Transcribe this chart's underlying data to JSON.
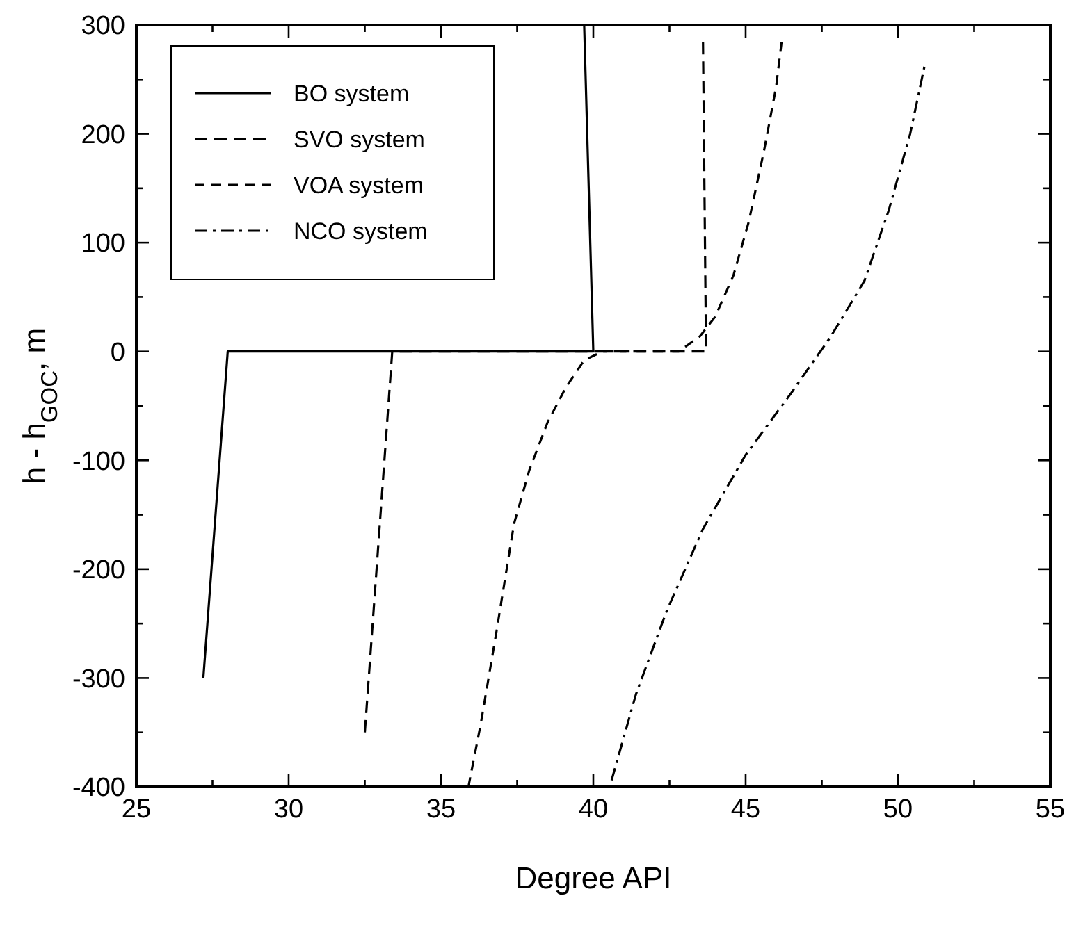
{
  "chart_data": {
    "type": "line",
    "xlabel": "Degree API",
    "ylabel": "h - h$_{GOC}$, m",
    "xlim": [
      25,
      55
    ],
    "ylim": [
      -400,
      300
    ],
    "xticks": [
      25,
      {
        "value": 27.5,
        "label": null
      },
      30,
      {
        "value": 32.5,
        "label": null
      },
      35,
      {
        "value": 37.5,
        "label": null
      },
      40,
      {
        "value": 42.5,
        "label": null
      },
      45,
      {
        "value": 47.5,
        "label": null
      },
      50,
      {
        "value": 52.5,
        "label": null
      },
      55
    ],
    "yticks": [
      -400,
      {
        "value": -350,
        "label": null
      },
      -300,
      {
        "value": -250,
        "label": null
      },
      -200,
      {
        "value": -150,
        "label": null
      },
      -100,
      {
        "value": -50,
        "label": null
      },
      0,
      {
        "value": 50,
        "label": null
      },
      100,
      {
        "value": 150,
        "label": null
      },
      200,
      {
        "value": 250,
        "label": null
      },
      300
    ],
    "grid": false,
    "legend": "top left",
    "series": [
      {
        "name": "BO system",
        "color": "#000000",
        "line_style": "solid",
        "x": [
          27.2,
          28.0,
          40.0,
          39.7
        ],
        "values": [
          -300,
          0,
          0,
          300
        ]
      },
      {
        "name": "SVO system",
        "color": "#000000",
        "line_style": "dashed",
        "x": [
          32.5,
          33.4,
          43.7,
          43.6
        ],
        "values": [
          -350,
          0,
          0,
          285
        ]
      },
      {
        "name": "VOA system",
        "color": "#000000",
        "line_style": "dashed",
        "x": [
          35.9,
          36.3,
          36.8,
          37.4,
          37.9,
          38.5,
          39.1,
          39.7,
          40.3,
          42.8,
          43.5,
          44.0,
          44.6,
          45.1,
          45.6,
          46.0,
          46.2
        ],
        "values": [
          -400,
          -343,
          -261,
          -158,
          -109,
          -65,
          -33,
          -8,
          0,
          0,
          14,
          32,
          70,
          119,
          184,
          243,
          289
        ]
      },
      {
        "name": "NCO system",
        "color": "#000000",
        "line_style": "dashdot",
        "x": [
          40.6,
          41.4,
          42.4,
          43.6,
          45.0,
          46.5,
          47.8,
          48.9,
          49.7,
          50.4,
          50.9
        ],
        "values": [
          -394,
          -315,
          -239,
          -163,
          -95,
          -38,
          14,
          65,
          130,
          200,
          266
        ]
      }
    ]
  }
}
